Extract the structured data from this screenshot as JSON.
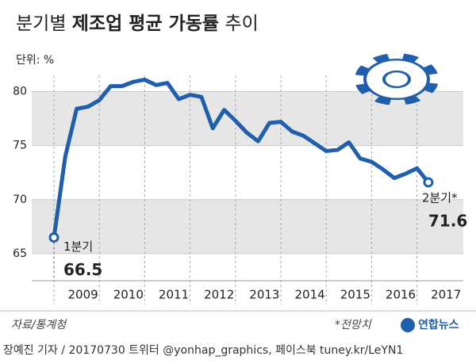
{
  "chart_data": {
    "type": "line",
    "title": {
      "lead": "분기별",
      "main": "제조업 평균 가동률",
      "tail": "추이"
    },
    "unit": "단위: %",
    "year_labels": [
      "2009",
      "2010",
      "2011",
      "2012",
      "2013",
      "2014",
      "2015",
      "2016",
      "2017"
    ],
    "values": [
      66.5,
      74.0,
      78.4,
      78.6,
      79.2,
      80.5,
      80.5,
      80.9,
      81.1,
      80.6,
      80.8,
      79.3,
      79.7,
      79.5,
      76.6,
      78.3,
      77.3,
      76.2,
      75.4,
      77.1,
      77.2,
      76.3,
      75.9,
      75.2,
      74.5,
      74.6,
      75.3,
      73.8,
      73.5,
      72.8,
      72.0,
      72.4,
      72.9,
      71.6
    ],
    "point_labels": [
      "1분기",
      null,
      null,
      null,
      null,
      null,
      null,
      null,
      null,
      null,
      null,
      null,
      null,
      null,
      null,
      null,
      null,
      null,
      null,
      null,
      null,
      null,
      null,
      null,
      null,
      null,
      null,
      null,
      null,
      null,
      null,
      null,
      null,
      "2분기*"
    ],
    "value_labels": [
      "66.5",
      null,
      null,
      null,
      null,
      null,
      null,
      null,
      null,
      null,
      null,
      null,
      null,
      null,
      null,
      null,
      null,
      null,
      null,
      null,
      null,
      null,
      null,
      null,
      null,
      null,
      null,
      null,
      null,
      null,
      null,
      null,
      null,
      "71.6"
    ],
    "color": "#1f5fae",
    "ylim": [
      62.5,
      81.5
    ],
    "yticks": [
      65,
      70,
      75,
      80
    ],
    "source": "자료/통계청",
    "note": "*전망치",
    "logo": "연합뉴스",
    "credit": "장예진 기자 / 20170730 트위터 @yonhap_graphics, 페이스북 tuney.kr/LeYN1"
  }
}
